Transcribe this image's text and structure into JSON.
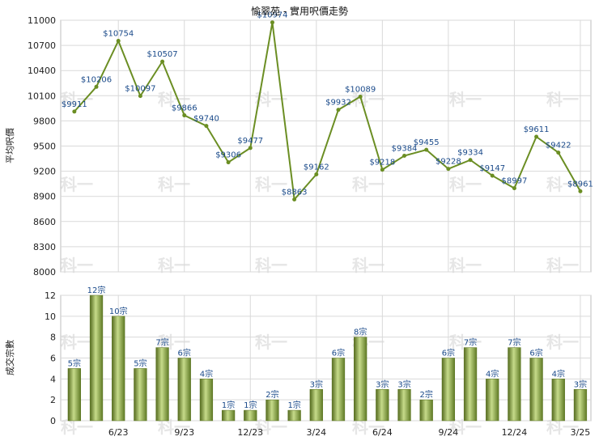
{
  "chart_data": [
    {
      "type": "line",
      "title": "愉翠苑 - 實用呎價走勢",
      "ylabel": "平均呎價",
      "ylim": [
        8000,
        11000
      ],
      "yticks": [
        8000,
        8300,
        8600,
        8900,
        9200,
        9500,
        9800,
        10100,
        10400,
        10700,
        11000
      ],
      "ytick_labels": [
        "8000",
        "8300",
        "8600",
        "8900",
        "9200",
        "9500",
        "9800",
        "10100",
        "10400",
        "10700",
        "11000"
      ],
      "grid": true,
      "color": "#6b8e23",
      "series": [
        {
          "values": [
            9911,
            10206,
            10754,
            10097,
            10507,
            9866,
            9740,
            9306,
            9477,
            10974,
            8863,
            9162,
            9932,
            10089,
            9218,
            9384,
            9455,
            9228,
            9334,
            9147,
            8997,
            9611,
            9422,
            8961
          ],
          "labels": [
            "$9911",
            "$10206",
            "$10754",
            "$10097",
            "$10507",
            "$9866",
            "$9740",
            "$9306",
            "$9477",
            "$10974",
            "$8863",
            "$9162",
            "$9932",
            "$10089",
            "$9218",
            "$9384",
            "$9455",
            "$9228",
            "$9334",
            "$9147",
            "$8997",
            "$9611",
            "$9422",
            "$8961"
          ]
        }
      ]
    },
    {
      "type": "bar",
      "ylabel": "成交宗數",
      "ylim": [
        0,
        12
      ],
      "yticks": [
        0,
        2,
        4,
        6,
        8,
        10,
        12
      ],
      "ytick_labels": [
        "0",
        "2",
        "4",
        "6",
        "8",
        "10",
        "12"
      ],
      "grid": true,
      "color": "#7a9a3a",
      "values": [
        5,
        12,
        10,
        5,
        7,
        6,
        4,
        1,
        1,
        2,
        1,
        3,
        6,
        8,
        3,
        3,
        2,
        6,
        7,
        4,
        7,
        6,
        4,
        3
      ],
      "labels": [
        "5宗",
        "12宗",
        "10宗",
        "5宗",
        "7宗",
        "6宗",
        "4宗",
        "1宗",
        "1宗",
        "2宗",
        "1宗",
        "3宗",
        "6宗",
        "8宗",
        "3宗",
        "3宗",
        "2宗",
        "6宗",
        "7宗",
        "4宗",
        "7宗",
        "6宗",
        "4宗",
        "3宗"
      ],
      "x_tick_labels": [
        "6/23",
        "9/23",
        "12/23",
        "3/24",
        "6/24",
        "9/24",
        "12/24",
        "3/25"
      ]
    }
  ],
  "watermark": "科一"
}
